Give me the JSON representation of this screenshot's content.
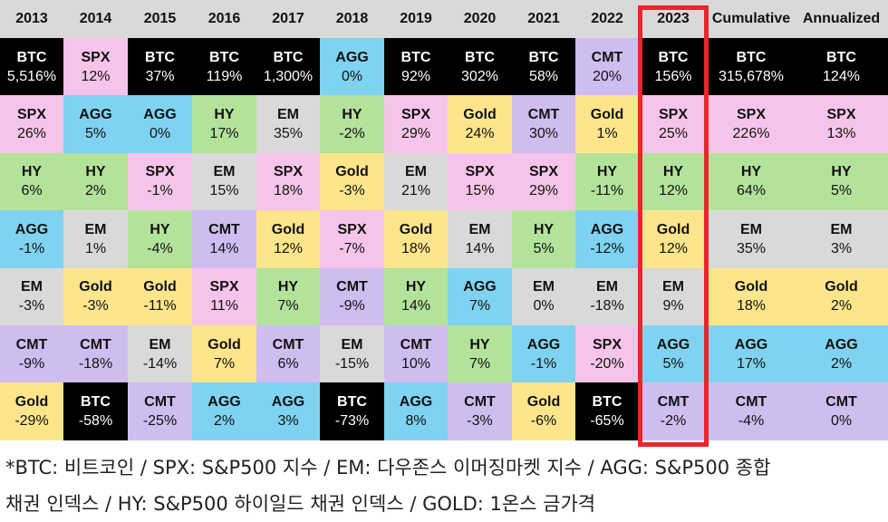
{
  "chart_data": {
    "type": "table",
    "columns": [
      "2013",
      "2014",
      "2015",
      "2016",
      "2017",
      "2018",
      "2019",
      "2020",
      "2021",
      "2022",
      "2023",
      "Cumulative",
      "Annualized"
    ],
    "highlighted_column": "2023",
    "highlight_color": "#e8262b",
    "asset_colors": {
      "BTC": "#000000",
      "SPX": "#f7c4e9",
      "AGG": "#7fd3f0",
      "HY": "#b3e39a",
      "EM": "#d9d9d9",
      "Gold": "#fce58a",
      "CMT": "#cfbdf0"
    },
    "cells": [
      [
        {
          "name": "BTC",
          "value": "5,516%"
        },
        {
          "name": "SPX",
          "value": "26%"
        },
        {
          "name": "HY",
          "value": "6%"
        },
        {
          "name": "AGG",
          "value": "-1%"
        },
        {
          "name": "EM",
          "value": "-3%"
        },
        {
          "name": "CMT",
          "value": "-9%"
        },
        {
          "name": "Gold",
          "value": "-29%"
        }
      ],
      [
        {
          "name": "SPX",
          "value": "12%"
        },
        {
          "name": "AGG",
          "value": "5%"
        },
        {
          "name": "HY",
          "value": "2%"
        },
        {
          "name": "EM",
          "value": "1%"
        },
        {
          "name": "Gold",
          "value": "-3%"
        },
        {
          "name": "CMT",
          "value": "-18%"
        },
        {
          "name": "BTC",
          "value": "-58%"
        }
      ],
      [
        {
          "name": "BTC",
          "value": "37%"
        },
        {
          "name": "AGG",
          "value": "0%"
        },
        {
          "name": "SPX",
          "value": "-1%"
        },
        {
          "name": "HY",
          "value": "-4%"
        },
        {
          "name": "Gold",
          "value": "-11%"
        },
        {
          "name": "EM",
          "value": "-14%"
        },
        {
          "name": "CMT",
          "value": "-25%"
        }
      ],
      [
        {
          "name": "BTC",
          "value": "119%"
        },
        {
          "name": "HY",
          "value": "17%"
        },
        {
          "name": "EM",
          "value": "15%"
        },
        {
          "name": "CMT",
          "value": "14%"
        },
        {
          "name": "SPX",
          "value": "11%"
        },
        {
          "name": "Gold",
          "value": "7%"
        },
        {
          "name": "AGG",
          "value": "2%"
        }
      ],
      [
        {
          "name": "BTC",
          "value": "1,300%"
        },
        {
          "name": "EM",
          "value": "35%"
        },
        {
          "name": "SPX",
          "value": "18%"
        },
        {
          "name": "Gold",
          "value": "12%"
        },
        {
          "name": "HY",
          "value": "7%"
        },
        {
          "name": "CMT",
          "value": "6%"
        },
        {
          "name": "AGG",
          "value": "3%"
        }
      ],
      [
        {
          "name": "AGG",
          "value": "0%"
        },
        {
          "name": "HY",
          "value": "-2%"
        },
        {
          "name": "Gold",
          "value": "-3%"
        },
        {
          "name": "SPX",
          "value": "-7%"
        },
        {
          "name": "CMT",
          "value": "-9%"
        },
        {
          "name": "EM",
          "value": "-15%"
        },
        {
          "name": "BTC",
          "value": "-73%"
        }
      ],
      [
        {
          "name": "BTC",
          "value": "92%"
        },
        {
          "name": "SPX",
          "value": "29%"
        },
        {
          "name": "EM",
          "value": "21%"
        },
        {
          "name": "Gold",
          "value": "18%"
        },
        {
          "name": "HY",
          "value": "14%"
        },
        {
          "name": "CMT",
          "value": "10%"
        },
        {
          "name": "AGG",
          "value": "8%"
        }
      ],
      [
        {
          "name": "BTC",
          "value": "302%"
        },
        {
          "name": "Gold",
          "value": "24%"
        },
        {
          "name": "SPX",
          "value": "15%"
        },
        {
          "name": "EM",
          "value": "14%"
        },
        {
          "name": "AGG",
          "value": "7%"
        },
        {
          "name": "HY",
          "value": "7%"
        },
        {
          "name": "CMT",
          "value": "-3%"
        }
      ],
      [
        {
          "name": "BTC",
          "value": "58%"
        },
        {
          "name": "CMT",
          "value": "30%"
        },
        {
          "name": "SPX",
          "value": "29%"
        },
        {
          "name": "HY",
          "value": "5%"
        },
        {
          "name": "EM",
          "value": "0%"
        },
        {
          "name": "AGG",
          "value": "-1%"
        },
        {
          "name": "Gold",
          "value": "-6%"
        }
      ],
      [
        {
          "name": "CMT",
          "value": "20%"
        },
        {
          "name": "Gold",
          "value": "1%"
        },
        {
          "name": "HY",
          "value": "-11%"
        },
        {
          "name": "AGG",
          "value": "-12%"
        },
        {
          "name": "EM",
          "value": "-18%"
        },
        {
          "name": "SPX",
          "value": "-20%"
        },
        {
          "name": "BTC",
          "value": "-65%"
        }
      ],
      [
        {
          "name": "BTC",
          "value": "156%"
        },
        {
          "name": "SPX",
          "value": "25%"
        },
        {
          "name": "HY",
          "value": "12%"
        },
        {
          "name": "Gold",
          "value": "12%"
        },
        {
          "name": "EM",
          "value": "9%"
        },
        {
          "name": "AGG",
          "value": "5%"
        },
        {
          "name": "CMT",
          "value": "-2%"
        }
      ],
      [
        {
          "name": "BTC",
          "value": "315,678%"
        },
        {
          "name": "SPX",
          "value": "226%"
        },
        {
          "name": "HY",
          "value": "64%"
        },
        {
          "name": "EM",
          "value": "35%"
        },
        {
          "name": "Gold",
          "value": "18%"
        },
        {
          "name": "AGG",
          "value": "17%"
        },
        {
          "name": "CMT",
          "value": "-4%"
        }
      ],
      [
        {
          "name": "BTC",
          "value": "124%"
        },
        {
          "name": "SPX",
          "value": "13%"
        },
        {
          "name": "HY",
          "value": "5%"
        },
        {
          "name": "EM",
          "value": "3%"
        },
        {
          "name": "Gold",
          "value": "2%"
        },
        {
          "name": "AGG",
          "value": "2%"
        },
        {
          "name": "CMT",
          "value": "0%"
        }
      ]
    ]
  },
  "footnote": {
    "line1": "*BTC: 비트코인 / SPX: S&P500 지수 / EM: 다우존스 이머징마켓 지수 / AGG: S&P500 종합",
    "line2": "채권 인덱스 / HY: S&P500 하이일드 채권 인덱스 / GOLD: 1온스 금가격"
  }
}
